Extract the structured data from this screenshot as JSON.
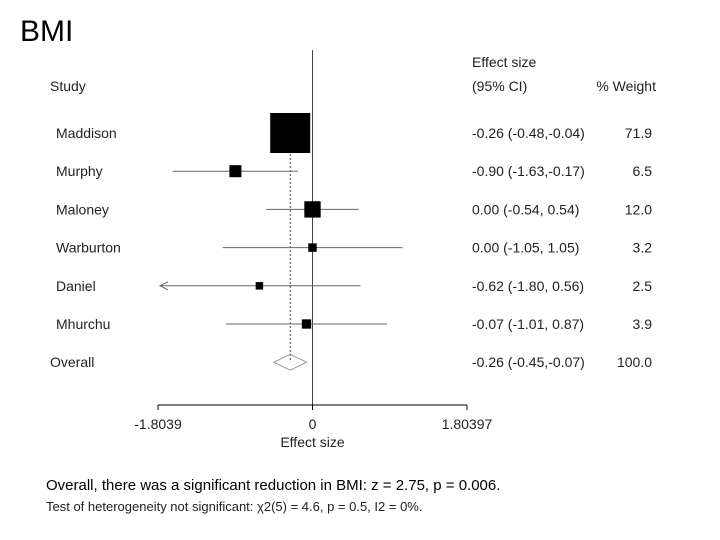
{
  "slide": {
    "title": "BMI"
  },
  "chart_data": {
    "type": "forest",
    "header": {
      "study": "Study",
      "effect_line1": "Effect size",
      "effect_line2": "(95% CI)",
      "weight": "% Weight"
    },
    "xlabel": "Effect size",
    "xlim": [
      -1.8039,
      1.80397
    ],
    "xticks": [
      {
        "value": -1.8039,
        "label": "-1.8039"
      },
      {
        "value": 0,
        "label": "0"
      },
      {
        "value": 1.80397,
        "label": "1.80397"
      }
    ],
    "studies": [
      {
        "name": "Maddison",
        "es": -0.26,
        "lo": -0.48,
        "hi": -0.04,
        "ci_text": "-0.26 (-0.48,-0.04)",
        "weight": 71.9,
        "weight_text": "71.9",
        "arrow_left": false
      },
      {
        "name": "Murphy",
        "es": -0.9,
        "lo": -1.63,
        "hi": -0.17,
        "ci_text": "-0.90 (-1.63,-0.17)",
        "weight": 6.5,
        "weight_text": "6.5",
        "arrow_left": false
      },
      {
        "name": "Maloney",
        "es": 0.0,
        "lo": -0.54,
        "hi": 0.54,
        "ci_text": "0.00 (-0.54, 0.54)",
        "weight": 12.0,
        "weight_text": "12.0",
        "arrow_left": false
      },
      {
        "name": "Warburton",
        "es": 0.0,
        "lo": -1.05,
        "hi": 1.05,
        "ci_text": "0.00 (-1.05, 1.05)",
        "weight": 3.2,
        "weight_text": "3.2",
        "arrow_left": false
      },
      {
        "name": "Daniel",
        "es": -0.62,
        "lo": -1.8,
        "hi": 0.56,
        "ci_text": "-0.62 (-1.80, 0.56)",
        "weight": 2.5,
        "weight_text": "2.5",
        "arrow_left": true
      },
      {
        "name": "Mhurchu",
        "es": -0.07,
        "lo": -1.01,
        "hi": 0.87,
        "ci_text": "-0.07 (-1.01, 0.87)",
        "weight": 3.9,
        "weight_text": "3.9",
        "arrow_left": false
      }
    ],
    "overall": {
      "name": "Overall",
      "es": -0.26,
      "lo": -0.45,
      "hi": -0.07,
      "ci_text": "-0.26 (-0.45,-0.07)",
      "weight_text": "100.0"
    },
    "colors": {
      "marker": "#000000",
      "ci_line": "#666666",
      "null_line": "#444444",
      "overall": "#999999"
    }
  },
  "caption": {
    "main": "Overall, there was a significant reduction in BMI: z = 2.75, p = 0.006.",
    "sub": "Test of heterogeneity not significant: χ2(5) = 4.6, p = 0.5, I2 = 0%."
  }
}
